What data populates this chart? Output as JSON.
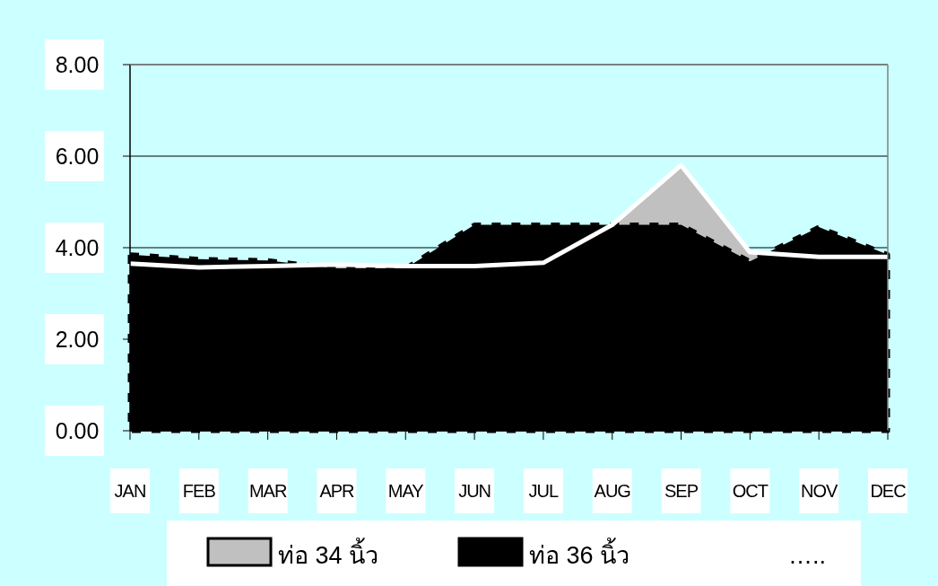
{
  "chart_data": {
    "type": "area",
    "categories": [
      "JAN",
      "FEB",
      "MAR",
      "APR",
      "MAY",
      "JUN",
      "JUL",
      "AUG",
      "SEP",
      "OCT",
      "NOV",
      "DEC"
    ],
    "series": [
      {
        "name": "ท่อ 34 นิ้ว",
        "color": "#c0c0c0",
        "values": [
          3.65,
          3.57,
          3.6,
          3.63,
          3.6,
          3.6,
          3.67,
          4.5,
          5.8,
          3.9,
          3.8,
          3.8
        ]
      },
      {
        "name": "ท่อ 36 นิ้ว",
        "color": "#000000",
        "values": [
          3.85,
          3.75,
          3.72,
          3.55,
          3.55,
          4.5,
          4.5,
          4.5,
          4.5,
          3.7,
          4.45,
          3.85
        ]
      }
    ],
    "ylim": [
      0,
      8
    ],
    "yticks": [
      {
        "value": 0,
        "label": "0.00"
      },
      {
        "value": 2,
        "label": "2.00"
      },
      {
        "value": 4,
        "label": "4.00"
      },
      {
        "value": 6,
        "label": "6.00"
      },
      {
        "value": 8,
        "label": "8.00"
      }
    ],
    "grid": "y",
    "legend": "bottom",
    "annotations": [
      "….."
    ]
  }
}
